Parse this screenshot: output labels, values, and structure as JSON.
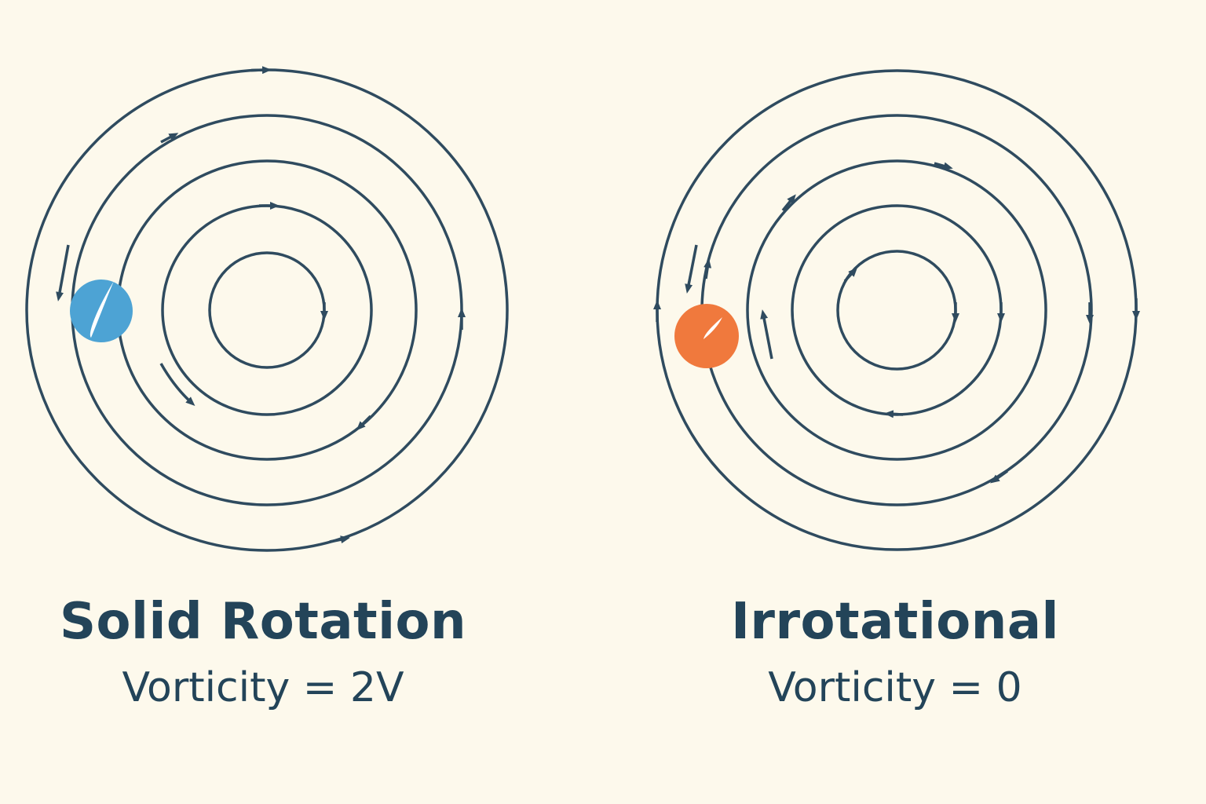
{
  "colors": {
    "background": "#fdf9ec",
    "line": "#2f4b5f",
    "text": "#234459",
    "solid_particle": "#4da3d4",
    "irrotational_particle": "#f0793d",
    "particle_mark": "#ffffff"
  },
  "panels": [
    {
      "id": "solid",
      "title": "Solid Rotation",
      "subtitle": "Vorticity = 2V",
      "particle_icon": "rotating-fluid-particle-icon"
    },
    {
      "id": "irrotational",
      "title": "Irrotational",
      "subtitle": "Vorticity = 0",
      "particle_icon": "non-rotating-fluid-particle-icon"
    }
  ]
}
